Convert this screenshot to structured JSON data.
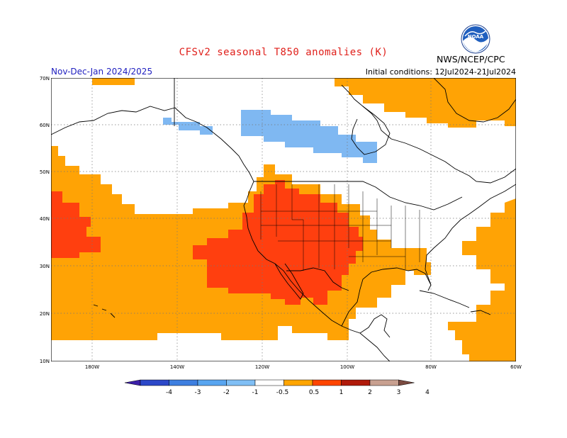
{
  "title": "CFSv2 seasonal T850 anomalies (K)",
  "season": "Nov-Dec-Jan 2024/2025",
  "initial_conditions": "Initial conditions: 12Jul2024-21Jul2024",
  "agency": "NWS/NCEP/CPC",
  "logo_text": "NOAA",
  "lat_labels": [
    "70N",
    "60N",
    "50N",
    "40N",
    "30N",
    "20N",
    "10N"
  ],
  "lon_labels": [
    "180W",
    "140W",
    "120W",
    "100W",
    "80W",
    "60W"
  ],
  "colorbar": {
    "labels": [
      "-4",
      "-3",
      "-2",
      "-1",
      "-0.5",
      "0.5",
      "1",
      "2",
      "3",
      "4"
    ],
    "colors": [
      "#3b1fa8",
      "#2c48c8",
      "#3e7fe0",
      "#58a5f0",
      "#80bff5",
      "#ffffff",
      "#ffa500",
      "#ff4500",
      "#b01a0a",
      "#c8a090",
      "#7a4a40"
    ]
  },
  "legend_colors": {
    "weak_cold": "#7fb8f2",
    "weak_warm": "#ffa305",
    "warm": "#ff3f0f"
  }
}
